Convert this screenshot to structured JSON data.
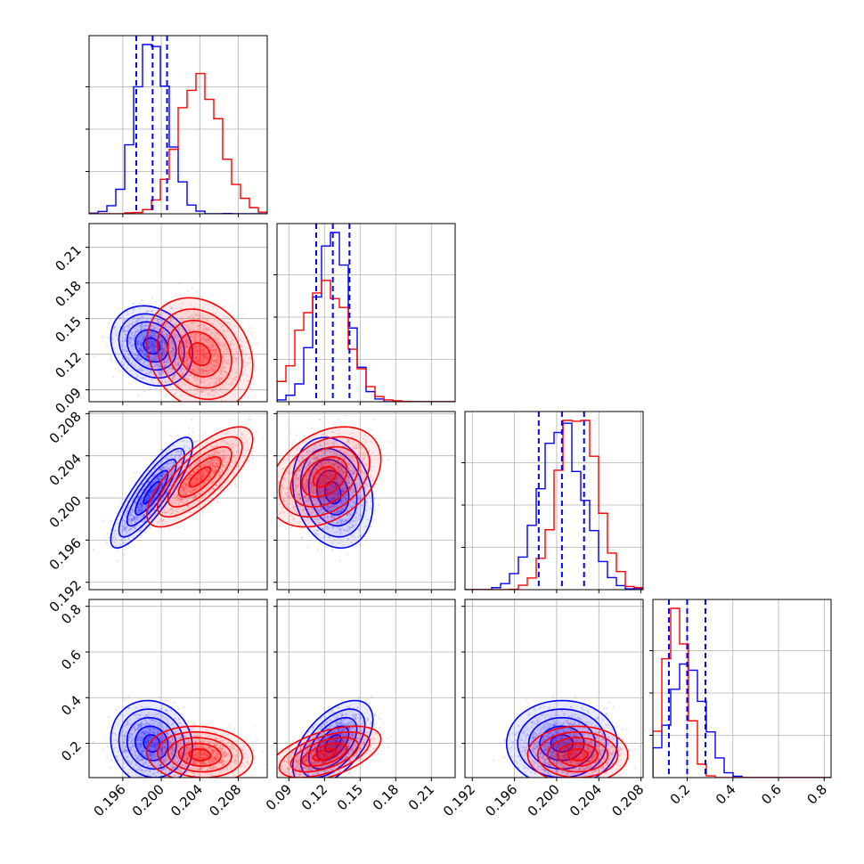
{
  "chart_data": {
    "type": "corner",
    "parameters": 4,
    "series": [
      {
        "color": "#0000ff",
        "mean": [
          0.199,
          0.127,
          0.2005,
          0.2
        ],
        "sd": [
          0.0017,
          0.0135,
          0.0021,
          0.075
        ]
      },
      {
        "color": "#ff0000",
        "mean": [
          0.204,
          0.12,
          0.202,
          0.15
        ],
        "sd": [
          0.0022,
          0.019,
          0.0019,
          0.05
        ]
      }
    ],
    "quantile_lines": {
      "color": "#0000ff",
      "values": [
        [
          0.1974,
          0.1991,
          0.2006
        ],
        [
          0.113,
          0.127,
          0.141
        ],
        [
          0.1983,
          0.2005,
          0.2026
        ],
        [
          0.12,
          0.2,
          0.28
        ]
      ]
    },
    "ranges": [
      [
        0.1925,
        0.211
      ],
      [
        0.08,
        0.23
      ],
      [
        0.1913,
        0.2082
      ],
      [
        0.05,
        0.83
      ]
    ],
    "ticks": [
      [
        0.196,
        0.2,
        0.204,
        0.208
      ],
      [
        0.09,
        0.12,
        0.15,
        0.18,
        0.21
      ],
      [
        0.192,
        0.196,
        0.2,
        0.204,
        0.208
      ],
      [
        0.2,
        0.4,
        0.6,
        0.8
      ]
    ],
    "tick_labels": [
      [
        "0.196",
        "0.200",
        "0.204",
        "0.208"
      ],
      [
        "0.09",
        "0.12",
        "0.15",
        "0.18",
        "0.21"
      ],
      [
        "0.192",
        "0.196",
        "0.200",
        "0.204",
        "0.208"
      ],
      [
        "0.2",
        "0.4",
        "0.6",
        "0.8"
      ]
    ],
    "grid": true
  }
}
